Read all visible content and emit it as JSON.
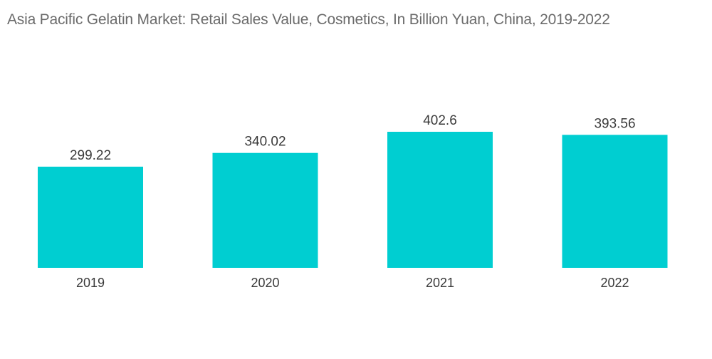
{
  "chart_data": {
    "type": "bar",
    "title": "Asia Pacific Gelatin Market: Retail Sales Value, Cosmetics, In Billion Yuan, China, 2019-2022",
    "categories": [
      "2019",
      "2020",
      "2021",
      "2022"
    ],
    "values": [
      299.22,
      340.02,
      402.6,
      393.56
    ],
    "value_labels": [
      "299.22",
      "340.02",
      "402.6",
      "393.56"
    ],
    "xlabel": "",
    "ylabel": "",
    "ylim": [
      0,
      402.6
    ],
    "grid": false,
    "legend": "none",
    "colors": {
      "bar": "#00ced1",
      "title": "#6b6b6b",
      "text": "#3a3a3a"
    }
  }
}
